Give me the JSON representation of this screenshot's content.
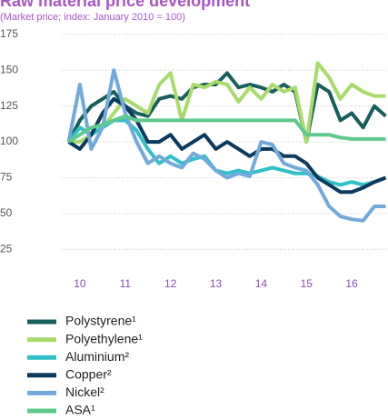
{
  "chart_data": {
    "type": "line",
    "title": "Raw material price development",
    "subtitle": "(Market price; index: January 2010 = 100)",
    "x": [
      9.75,
      10,
      10.25,
      10.5,
      10.75,
      11,
      11.25,
      11.5,
      11.75,
      12,
      12.25,
      12.5,
      12.75,
      13,
      13.25,
      13.5,
      13.75,
      14,
      14.25,
      14.5,
      14.75,
      15,
      15.25,
      15.5,
      15.75,
      16,
      16.25,
      16.5,
      16.75
    ],
    "xlim": [
      9.6,
      16.8
    ],
    "xticks": [
      {
        "value": 10,
        "label": "10"
      },
      {
        "value": 11,
        "label": "11"
      },
      {
        "value": 12,
        "label": "12"
      },
      {
        "value": 13,
        "label": "13"
      },
      {
        "value": 14,
        "label": "14"
      },
      {
        "value": 15,
        "label": "15"
      },
      {
        "value": 16,
        "label": "16"
      }
    ],
    "ylim": [
      15,
      180
    ],
    "yticks": [
      25,
      50,
      75,
      100,
      125,
      150,
      175
    ],
    "grid": true,
    "series": [
      {
        "name": "Polystyrene¹",
        "color": "#175f5b",
        "values": [
          100,
          115,
          125,
          130,
          135,
          125,
          120,
          118,
          130,
          132,
          130,
          138,
          140,
          140,
          148,
          138,
          140,
          138,
          135,
          140,
          135,
          100,
          140,
          135,
          115,
          120,
          110,
          125,
          118
        ]
      },
      {
        "name": "Polyethylene¹",
        "color": "#a8da6c",
        "values": [
          100,
          100,
          105,
          110,
          120,
          130,
          125,
          120,
          140,
          148,
          115,
          140,
          138,
          142,
          140,
          128,
          138,
          130,
          140,
          135,
          138,
          100,
          155,
          145,
          130,
          140,
          135,
          132,
          132
        ]
      },
      {
        "name": "Aluminium²",
        "color": "#2fc0c9",
        "values": [
          100,
          110,
          105,
          110,
          115,
          115,
          108,
          95,
          85,
          90,
          85,
          88,
          90,
          80,
          78,
          80,
          78,
          80,
          82,
          80,
          78,
          78,
          76,
          72,
          70,
          72,
          70,
          72,
          75
        ]
      },
      {
        "name": "Copper²",
        "color": "#0b3a5e",
        "values": [
          100,
          95,
          105,
          120,
          130,
          125,
          115,
          100,
          100,
          105,
          95,
          100,
          105,
          95,
          100,
          95,
          90,
          95,
          95,
          90,
          90,
          85,
          75,
          70,
          65,
          65,
          68,
          72,
          75
        ]
      },
      {
        "name": "Nickel²",
        "color": "#72a9db",
        "values": [
          100,
          140,
          95,
          110,
          150,
          120,
          100,
          85,
          90,
          85,
          82,
          92,
          88,
          80,
          75,
          78,
          76,
          100,
          98,
          85,
          82,
          80,
          70,
          55,
          48,
          46,
          45,
          55,
          55
        ]
      },
      {
        "name": "ASA¹",
        "color": "#5ec98c",
        "values": [
          100,
          105,
          110,
          112,
          115,
          118,
          115,
          115,
          115,
          115,
          115,
          115,
          115,
          115,
          115,
          115,
          115,
          115,
          115,
          115,
          115,
          105,
          105,
          105,
          103,
          102,
          102,
          102,
          102
        ]
      }
    ]
  }
}
